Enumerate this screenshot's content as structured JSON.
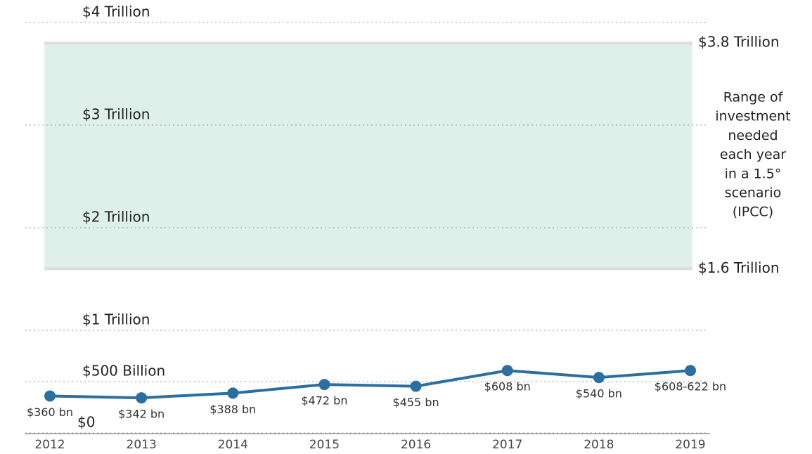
{
  "chart_data": {
    "type": "line",
    "categories": [
      "2012",
      "2013",
      "2014",
      "2015",
      "2016",
      "2017",
      "2018",
      "2019"
    ],
    "series": [
      {
        "color": "#2b6fa1",
        "values": [
          360,
          342,
          388,
          472,
          455,
          608,
          540,
          608
        ],
        "value_labels": [
          "$360 bn",
          "$342 bn",
          "$388 bn",
          "$472 bn",
          "$455 bn",
          "$608 bn",
          "$540 bn",
          "$608-622 bn"
        ]
      }
    ],
    "ylim": [
      0,
      4000
    ],
    "yticks": [
      {
        "value": 0,
        "label": "$0"
      },
      {
        "value": 500,
        "label": "$500 Billion"
      },
      {
        "value": 1000,
        "label": "$1 Trillion"
      },
      {
        "value": 2000,
        "label": "$2 Trillion"
      },
      {
        "value": 3000,
        "label": "$3 Trillion"
      },
      {
        "value": 4000,
        "label": "$4 Trillion"
      }
    ],
    "grid": true,
    "band": {
      "range": [
        1600,
        3800
      ],
      "color": "#dff0ea",
      "range_labels": [
        "$1.6 Trillion",
        "$3.8 Trillion"
      ],
      "note": [
        "Range of",
        "investment",
        "needed",
        "each year",
        "in a 1.5°",
        "scenario",
        "(IPCC)"
      ]
    }
  }
}
